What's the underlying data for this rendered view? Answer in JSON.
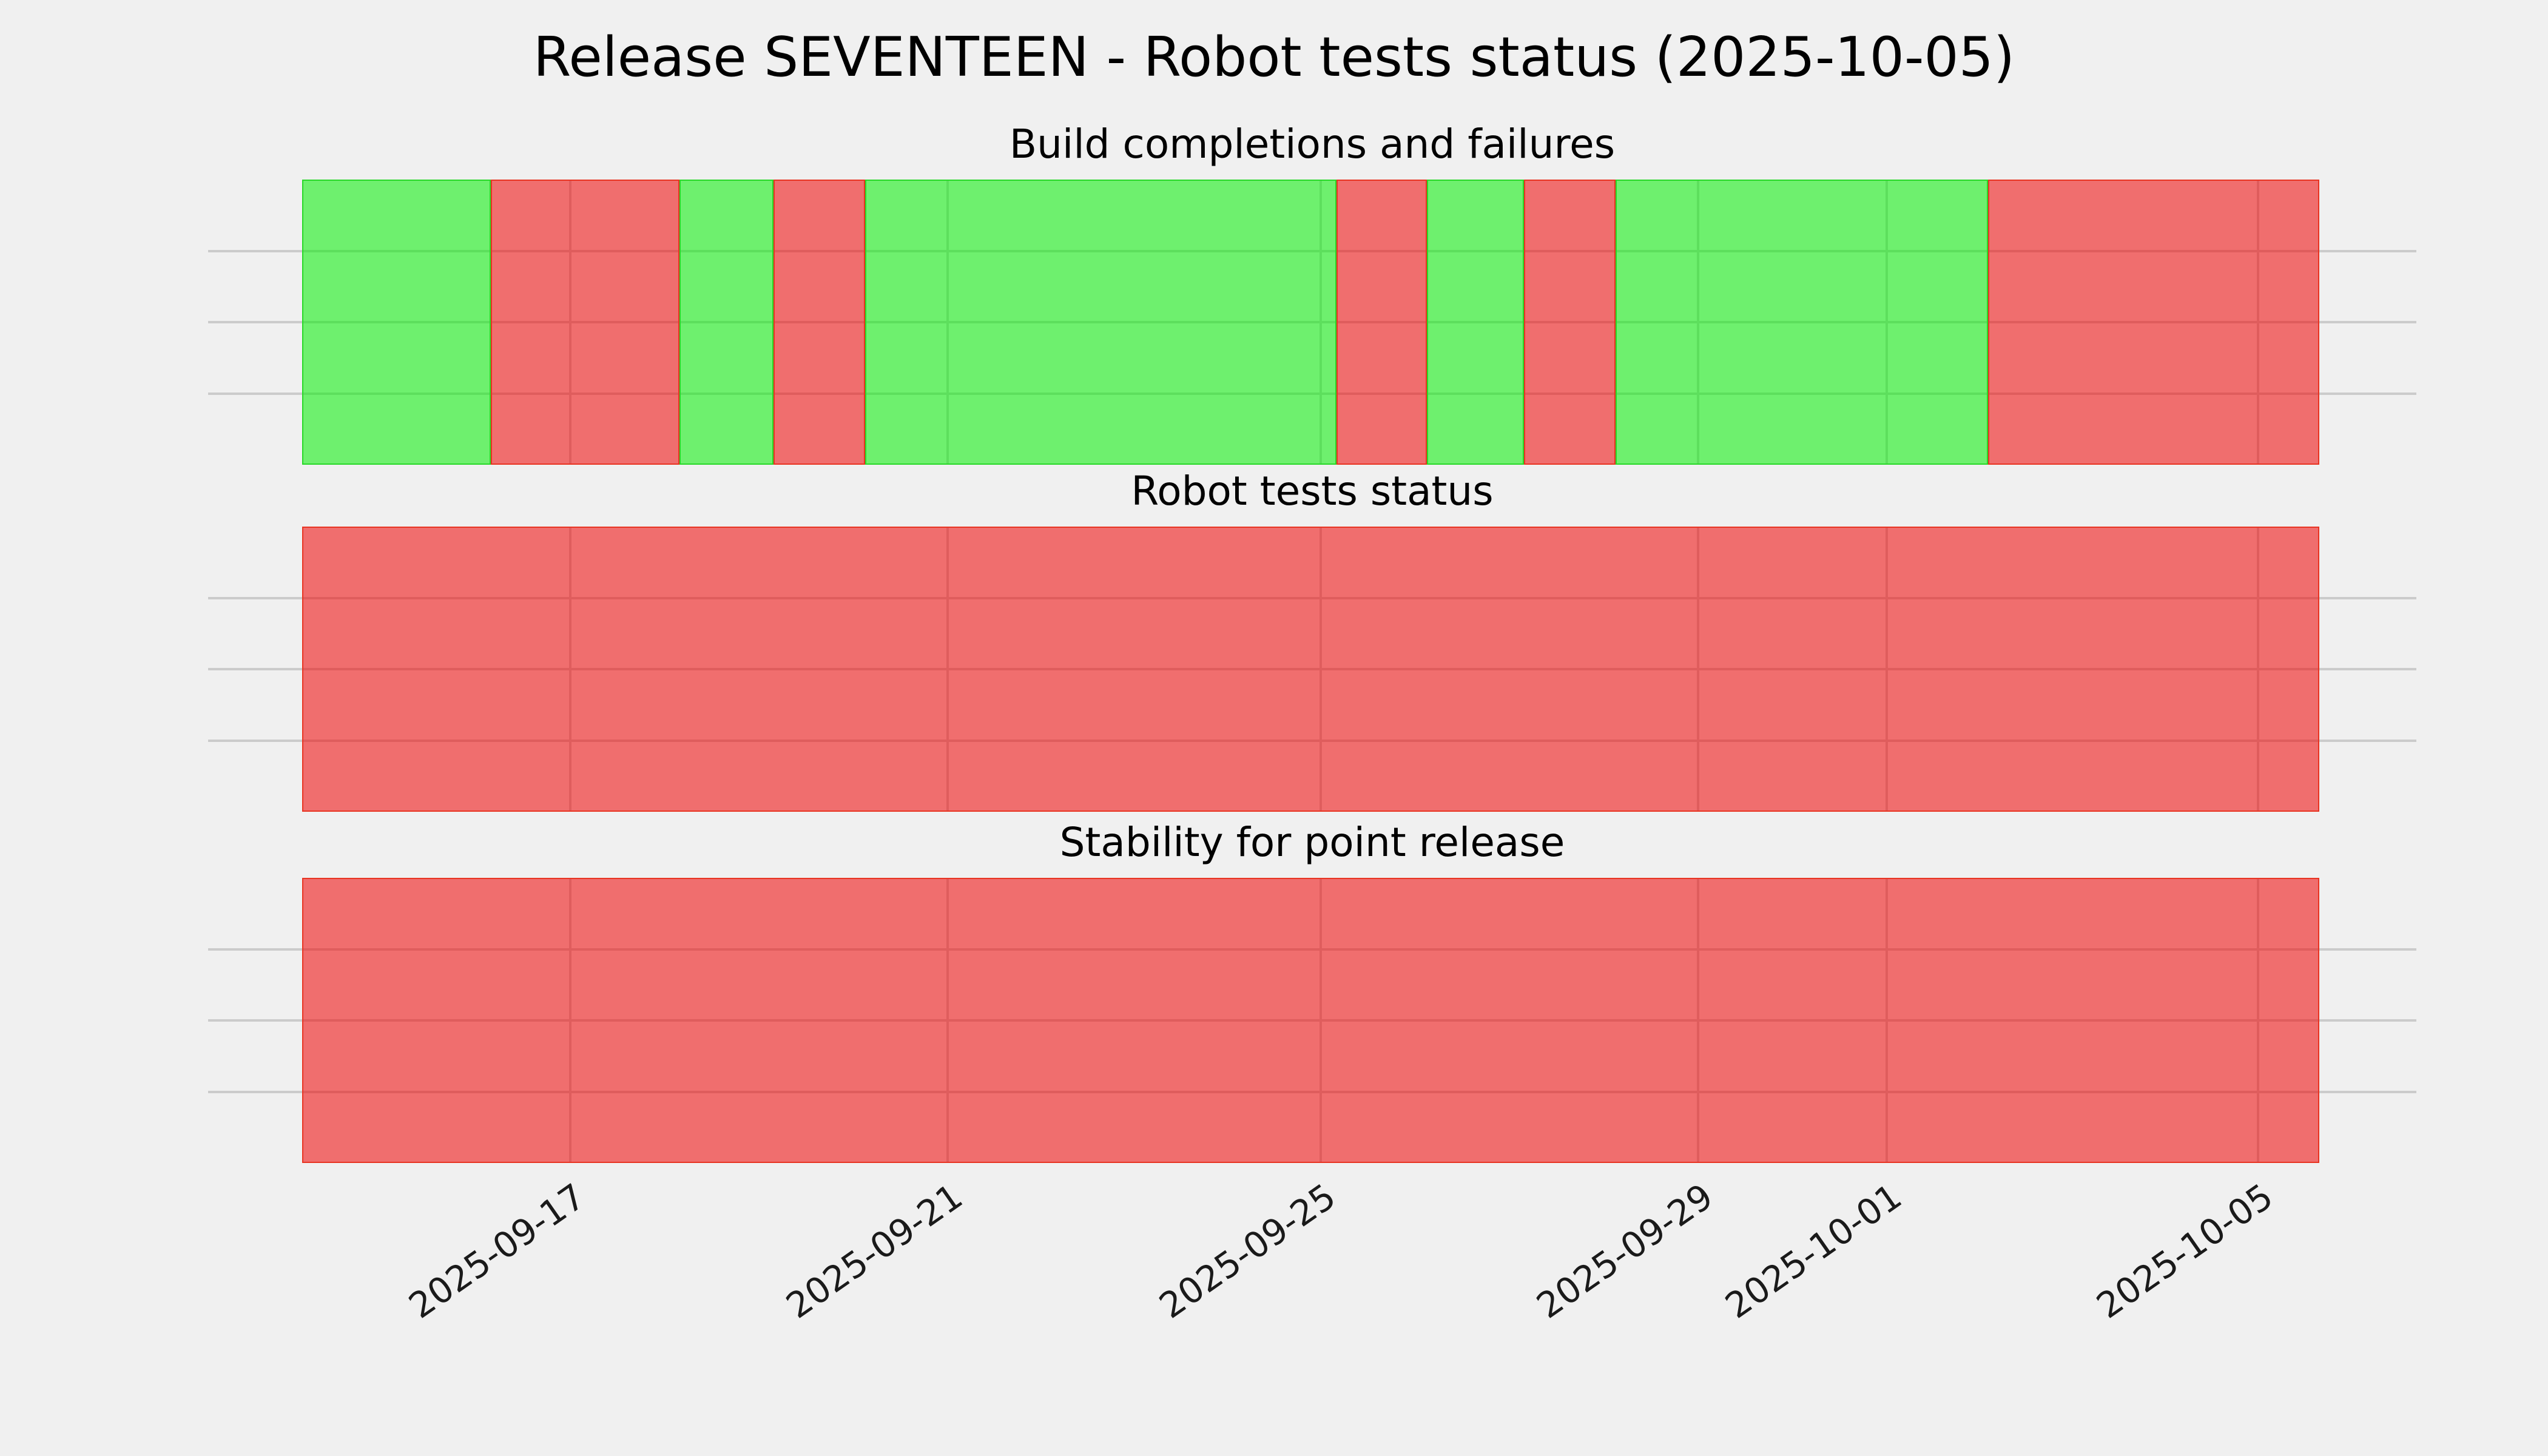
{
  "figure": {
    "title": "Release SEVENTEEN - Robot tests status (2025-10-05)",
    "background": "#f0f0f0"
  },
  "chart_data": {
    "type": "bar",
    "subtype": "horizontal status timeline, 3 stacked panels sharing one date x-axis",
    "title": "Release SEVENTEEN - Robot tests status (2025-10-05)",
    "xlabel": "",
    "ylabel": "",
    "legend": null,
    "x_axis": {
      "tick_labels": [
        "2025-09-17",
        "2025-09-21",
        "2025-09-25",
        "2025-09-29",
        "2025-10-01",
        "2025-10-05"
      ],
      "tick_positions_pct": [
        16.4,
        33.49,
        50.38,
        67.47,
        76.02,
        92.83
      ],
      "range_approx": [
        "2025-09-15",
        "2025-10-06"
      ],
      "label_rotation_deg": 35,
      "grid": true
    },
    "y_axis": {
      "tick_labels": [],
      "gridlines_pct": [
        25,
        50,
        75
      ],
      "grid": true
    },
    "colors": {
      "success_fill": "rgba(0,240,0,0.54)",
      "failure_fill": "rgba(240,0,0,0.54)",
      "success_edge": "#28d828",
      "failure_edge": "#e83422",
      "success_composite_hex": "#6ef06e",
      "failure_composite_hex": "#f06e6e",
      "grid": "#cbcbcb",
      "background": "#f0f0f0"
    },
    "panels": [
      {
        "title": "Build completions and failures",
        "segments": [
          {
            "status": "success",
            "width_pct": 9.35,
            "approx_start": "2025-09-15",
            "approx_end": "2025-09-17"
          },
          {
            "status": "failure",
            "width_pct": 9.35,
            "approx_start": "2025-09-17",
            "approx_end": "2025-09-19"
          },
          {
            "status": "success",
            "width_pct": 4.66,
            "approx_start": "2025-09-19",
            "approx_end": "2025-09-20"
          },
          {
            "status": "failure",
            "width_pct": 4.54,
            "approx_start": "2025-09-20",
            "approx_end": "2025-09-21"
          },
          {
            "status": "success",
            "width_pct": 23.37,
            "approx_start": "2025-09-21",
            "approx_end": "2025-09-26"
          },
          {
            "status": "failure",
            "width_pct": 4.48,
            "approx_start": "2025-09-26",
            "approx_end": "2025-09-27"
          },
          {
            "status": "success",
            "width_pct": 4.81,
            "approx_start": "2025-09-27",
            "approx_end": "2025-09-28"
          },
          {
            "status": "failure",
            "width_pct": 4.54,
            "approx_start": "2025-09-28",
            "approx_end": "2025-09-29"
          },
          {
            "status": "success",
            "width_pct": 18.47,
            "approx_start": "2025-09-29",
            "approx_end": "2025-10-02"
          },
          {
            "status": "failure",
            "width_pct": 16.43,
            "approx_start": "2025-10-02",
            "approx_end": "2025-10-06"
          }
        ]
      },
      {
        "title": "Robot tests status",
        "segments": [
          {
            "status": "failure",
            "width_pct": 100,
            "approx_start": "2025-09-15",
            "approx_end": "2025-10-06"
          }
        ]
      },
      {
        "title": "Stability for point release",
        "segments": [
          {
            "status": "failure",
            "width_pct": 100,
            "approx_start": "2025-09-15",
            "approx_end": "2025-10-06"
          }
        ]
      }
    ]
  }
}
